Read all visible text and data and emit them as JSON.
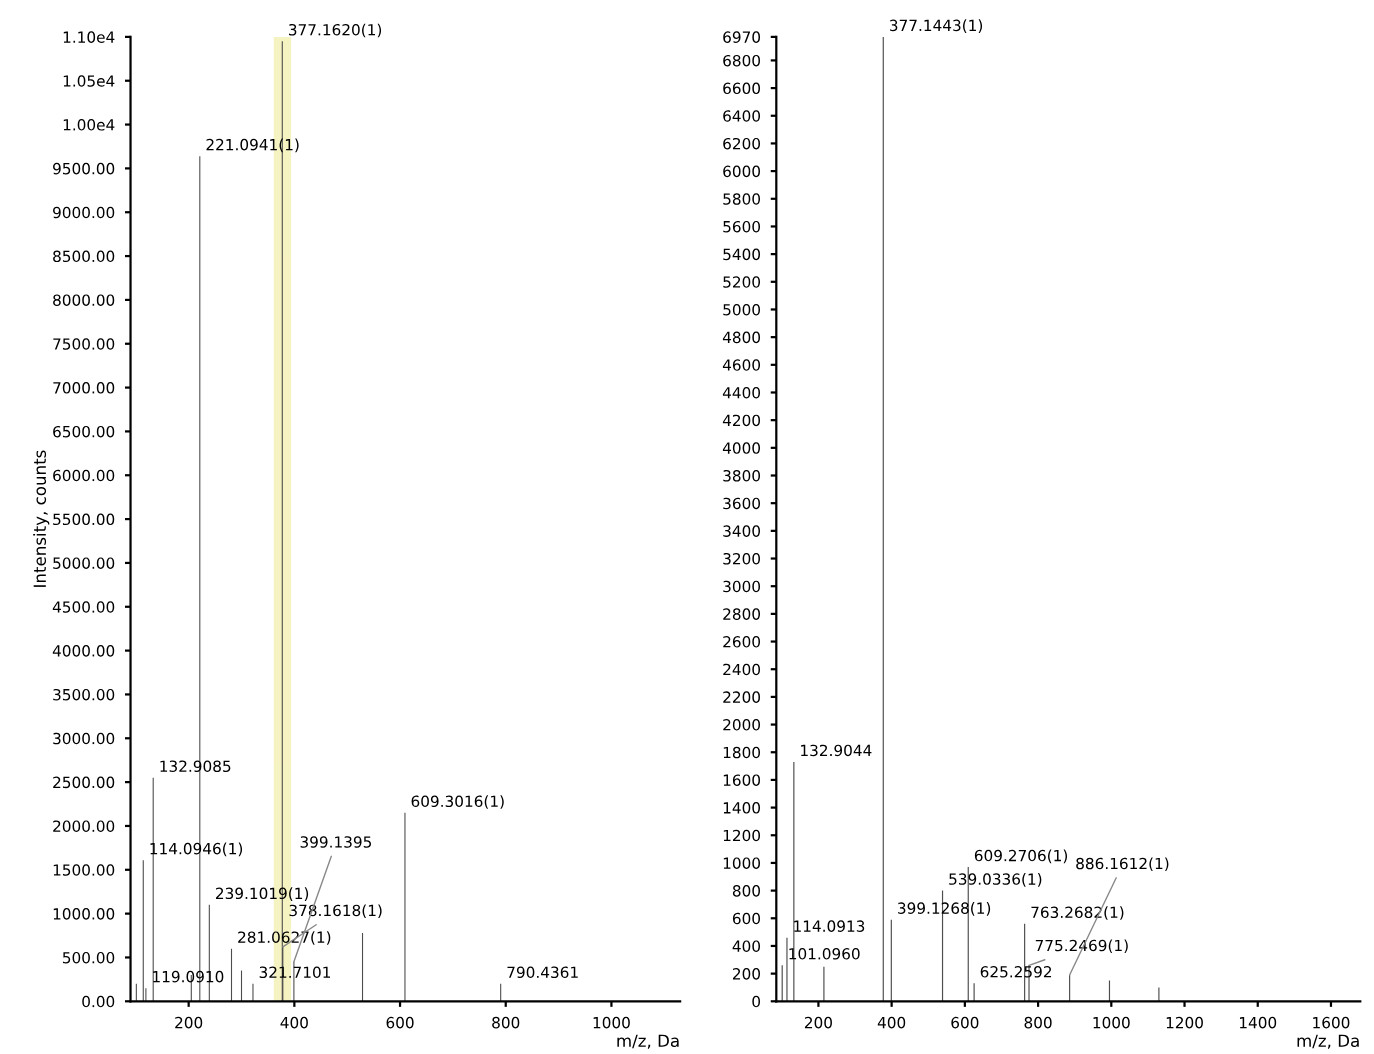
{
  "chart_data": [
    {
      "type": "bar",
      "ylabel": "Intensity, counts",
      "xlabel": "m/z, Da",
      "color": "#4d4d4d",
      "x": [
        101,
        114.0946,
        119.091,
        132.9085,
        205,
        221.0941,
        239.1019,
        281.0627,
        300,
        321.7101,
        377.162,
        378.1618,
        399.1395,
        529,
        609.3016,
        790.4361
      ],
      "values": [
        200,
        1610,
        150,
        2550,
        300,
        9640,
        1100,
        600,
        350,
        200,
        10950,
        620,
        450,
        780,
        2150,
        200
      ],
      "annotations": [
        {
          "text": "114.0946(1)",
          "x": 114.0946,
          "y": 1610
        },
        {
          "text": "119.0910",
          "x": 119.091,
          "y": 150
        },
        {
          "text": "132.9085",
          "x": 132.9085,
          "y": 2550
        },
        {
          "text": "221.0941(1)",
          "x": 221.0941,
          "y": 9640
        },
        {
          "text": "239.1019(1)",
          "x": 239.1019,
          "y": 1100
        },
        {
          "text": "281.0627(1)",
          "x": 281.0627,
          "y": 600
        },
        {
          "text": "321.7101",
          "x": 321.7101,
          "y": 200
        },
        {
          "text": "377.1620(1)",
          "x": 377.162,
          "y": 10950
        },
        {
          "text": "378.1618(1)",
          "x": 378.1618,
          "y": 620
        },
        {
          "text": "399.1395",
          "x": 399.1395,
          "y": 450
        },
        {
          "text": "609.3016(1)",
          "x": 609.3016,
          "y": 2150
        },
        {
          "text": "790.4361",
          "x": 790.4361,
          "y": 200
        }
      ],
      "bands": [
        {
          "axis": "x",
          "from": 365,
          "to": 390,
          "color": "#e6dc50"
        }
      ],
      "xlim": [
        90,
        1130
      ],
      "xticks": [
        200,
        400,
        600,
        800,
        1000
      ],
      "ylim": [
        0,
        11000
      ],
      "yticks": [
        {
          "value": 0,
          "label": "0.00"
        },
        {
          "value": 500,
          "label": "500.00"
        },
        {
          "value": 1000,
          "label": "1000.00"
        },
        {
          "value": 1500,
          "label": "1500.00"
        },
        {
          "value": 2000,
          "label": "2000.00"
        },
        {
          "value": 2500,
          "label": "2500.00"
        },
        {
          "value": 3000,
          "label": "3000.00"
        },
        {
          "value": 3500,
          "label": "3500.00"
        },
        {
          "value": 4000,
          "label": "4000.00"
        },
        {
          "value": 4500,
          "label": "4500.00"
        },
        {
          "value": 5000,
          "label": "5000.00"
        },
        {
          "value": 5500,
          "label": "5500.00"
        },
        {
          "value": 6000,
          "label": "6000.00"
        },
        {
          "value": 6500,
          "label": "6500.00"
        },
        {
          "value": 7000,
          "label": "7000.00"
        },
        {
          "value": 7500,
          "label": "7500.00"
        },
        {
          "value": 8000,
          "label": "8000.00"
        },
        {
          "value": 8500,
          "label": "8500.00"
        },
        {
          "value": 9000,
          "label": "9000.00"
        },
        {
          "value": 9500,
          "label": "9500.00"
        },
        {
          "value": 10000,
          "label": "1.00e4"
        },
        {
          "value": 10500,
          "label": "1.05e4"
        },
        {
          "value": 11000,
          "label": "1.10e4"
        }
      ]
    },
    {
      "type": "bar",
      "xlabel": "m/z, Da",
      "color": "#4d4d4d",
      "x": [
        101.096,
        114.0913,
        132.9044,
        215,
        377.1443,
        399.1268,
        539.0336,
        609.2706,
        625.2592,
        763.2682,
        775.2469,
        886.1612,
        995,
        1130
      ],
      "values": [
        260,
        460,
        1730,
        250,
        6970,
        590,
        800,
        970,
        130,
        560,
        260,
        190,
        150,
        100
      ],
      "annotations": [
        {
          "text": "101.0960",
          "x": 101.096,
          "y": 260
        },
        {
          "text": "114.0913",
          "x": 114.0913,
          "y": 460
        },
        {
          "text": "132.9044",
          "x": 132.9044,
          "y": 1730
        },
        {
          "text": "377.1443(1)",
          "x": 377.1443,
          "y": 6970
        },
        {
          "text": "399.1268(1)",
          "x": 399.1268,
          "y": 590
        },
        {
          "text": "539.0336(1)",
          "x": 539.0336,
          "y": 800
        },
        {
          "text": "609.2706(1)",
          "x": 609.2706,
          "y": 970
        },
        {
          "text": "625.2592",
          "x": 625.2592,
          "y": 130
        },
        {
          "text": "763.2682(1)",
          "x": 763.2682,
          "y": 560
        },
        {
          "text": "775.2469(1)",
          "x": 775.2469,
          "y": 260
        },
        {
          "text": "886.1612(1)",
          "x": 886.1612,
          "y": 190
        }
      ],
      "xlim": [
        85,
        1680
      ],
      "xticks": [
        200,
        400,
        600,
        800,
        1000,
        1200,
        1400,
        1600
      ],
      "ylim": [
        0,
        6970
      ],
      "yticks": [
        0,
        200,
        400,
        600,
        800,
        1000,
        1200,
        1400,
        1600,
        1800,
        2000,
        2200,
        2400,
        2600,
        2800,
        3000,
        3200,
        3400,
        3600,
        3800,
        4000,
        4200,
        4400,
        4600,
        4800,
        5000,
        5200,
        5400,
        5600,
        5800,
        6000,
        6200,
        6400,
        6600,
        6800,
        6970
      ]
    }
  ]
}
